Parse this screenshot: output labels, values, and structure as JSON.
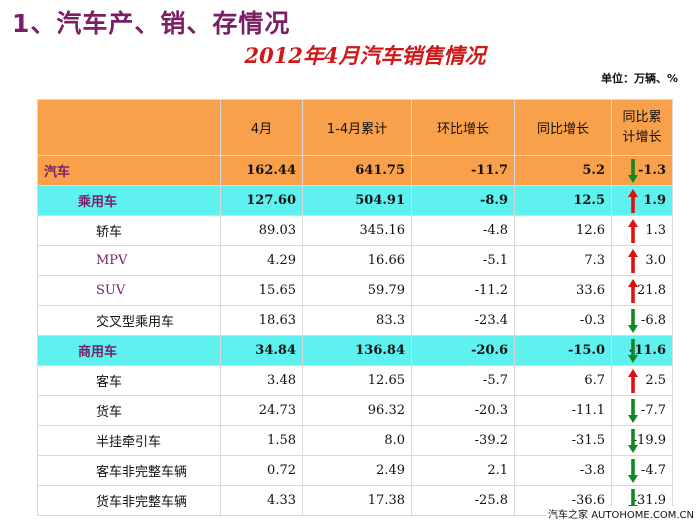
{
  "section_title": "1、汽车产、销、存情况",
  "main_title": "2012年4月汽车销售情况",
  "unit": "单位：万辆、%",
  "table": {
    "headers": [
      "",
      "4月",
      "1-4月累计",
      "环比增长",
      "同比增长",
      "同比累计增长"
    ],
    "rows": [
      {
        "name": "汽车",
        "apr": "162.44",
        "cum": "641.75",
        "mom": "-11.7",
        "yoy": "5.2",
        "ycum": "-1.3",
        "trend": "down",
        "level": "total"
      },
      {
        "name": "乘用车",
        "apr": "127.60",
        "cum": "504.91",
        "mom": "-8.9",
        "yoy": "12.5",
        "ycum": "1.9",
        "trend": "up",
        "level": "group"
      },
      {
        "name": "轿车",
        "apr": "89.03",
        "cum": "345.16",
        "mom": "-4.8",
        "yoy": "12.6",
        "ycum": "1.3",
        "trend": "up",
        "level": "item"
      },
      {
        "name": "MPV",
        "apr": "4.29",
        "cum": "16.66",
        "mom": "-5.1",
        "yoy": "7.3",
        "ycum": "3.0",
        "trend": "up",
        "level": "item"
      },
      {
        "name": "SUV",
        "apr": "15.65",
        "cum": "59.79",
        "mom": "-11.2",
        "yoy": "33.6",
        "ycum": "21.8",
        "trend": "up",
        "level": "item"
      },
      {
        "name": "交叉型乘用车",
        "apr": "18.63",
        "cum": "83.3",
        "mom": "-23.4",
        "yoy": "-0.3",
        "ycum": "-6.8",
        "trend": "down",
        "level": "item"
      },
      {
        "name": "商用车",
        "apr": "34.84",
        "cum": "136.84",
        "mom": "-20.6",
        "yoy": "-15.0",
        "ycum": "-11.6",
        "trend": "down",
        "level": "group"
      },
      {
        "name": "客车",
        "apr": "3.48",
        "cum": "12.65",
        "mom": "-5.7",
        "yoy": "6.7",
        "ycum": "2.5",
        "trend": "up",
        "level": "item"
      },
      {
        "name": "货车",
        "apr": "24.73",
        "cum": "96.32",
        "mom": "-20.3",
        "yoy": "-11.1",
        "ycum": "-7.7",
        "trend": "down",
        "level": "item"
      },
      {
        "name": "半挂牵引车",
        "apr": "1.58",
        "cum": "8.0",
        "mom": "-39.2",
        "yoy": "-31.5",
        "ycum": "-19.9",
        "trend": "down",
        "level": "item"
      },
      {
        "name": "客车非完整车辆",
        "apr": "0.72",
        "cum": "2.49",
        "mom": "2.1",
        "yoy": "-3.8",
        "ycum": "-4.7",
        "trend": "down",
        "level": "item"
      },
      {
        "name": "货车非完整车辆",
        "apr": "4.33",
        "cum": "17.38",
        "mom": "-25.8",
        "yoy": "-36.6",
        "ycum": "-31.9",
        "trend": "down",
        "level": "item"
      }
    ]
  },
  "footer_logo": "汽车之家 AUTOHOME.COM.CN",
  "colors": {
    "header_bg": "#f9a04a",
    "group_bg": "#5ff0f0",
    "title_red": "#d01818",
    "label_magenta": "#7a1f66",
    "arrow_up": "#e01010",
    "arrow_down": "#118822"
  }
}
